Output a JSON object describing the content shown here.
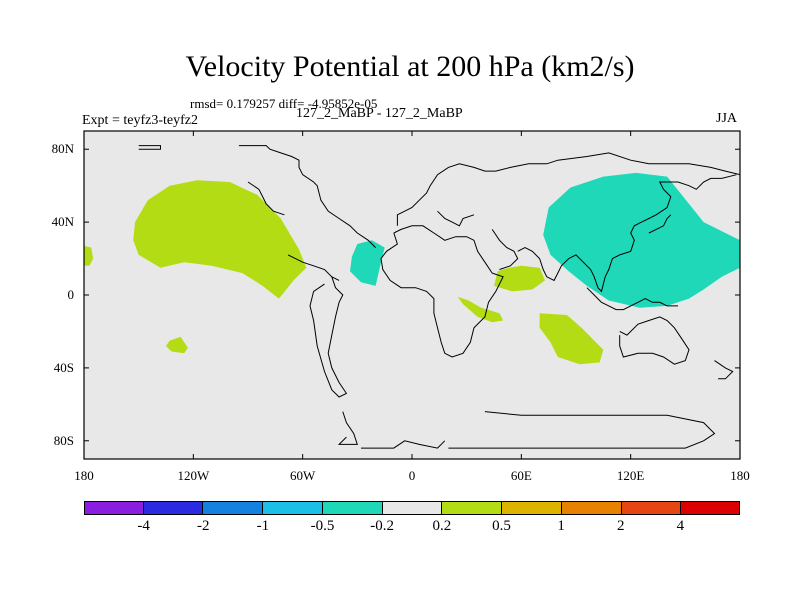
{
  "chart_data": {
    "type": "contour-map",
    "title": "Velocity Potential at 200 hPa (km2/s)",
    "stats_text": "rmsd= 0.179257 diff= -4.95852e-05",
    "left_label": "Expt = teyfz3-teyfz2",
    "center_label": "127_2_MaBP - 127_2_MaBP",
    "right_label": "JJA",
    "xlim": [
      -180,
      180
    ],
    "ylim": [
      -90,
      90
    ],
    "x_ticks": [
      {
        "value": -180,
        "label": "180"
      },
      {
        "value": -120,
        "label": "120W"
      },
      {
        "value": -60,
        "label": "60W"
      },
      {
        "value": 0,
        "label": "0"
      },
      {
        "value": 60,
        "label": "60E"
      },
      {
        "value": 120,
        "label": "120E"
      },
      {
        "value": 180,
        "label": "180"
      }
    ],
    "y_ticks": [
      {
        "value": 80,
        "label": "80N"
      },
      {
        "value": 40,
        "label": "40N"
      },
      {
        "value": 0,
        "label": "0"
      },
      {
        "value": -40,
        "label": "40S"
      },
      {
        "value": -80,
        "label": "80S"
      }
    ],
    "colorbar": {
      "colors": [
        "#8a1ee0",
        "#2a2ae0",
        "#1480e0",
        "#1cc0e6",
        "#1ed8b8",
        "#e8e8e8",
        "#b4dc14",
        "#dcb400",
        "#e68200",
        "#e64614",
        "#dc0000"
      ],
      "labels": [
        "-4",
        "-2",
        "-1",
        "-0.5",
        "-0.2",
        "0.2",
        "0.5",
        "1",
        "2",
        "4"
      ]
    },
    "background_color": "#e8e8e8",
    "regions": [
      {
        "name": "positive-anomaly-north-pacific",
        "level": "0.2 to 0.5",
        "color": "#b4dc14",
        "points": [
          [
            -152,
            40
          ],
          [
            -145,
            52
          ],
          [
            -133,
            60
          ],
          [
            -118,
            63
          ],
          [
            -100,
            62
          ],
          [
            -85,
            55
          ],
          [
            -72,
            42
          ],
          [
            -62,
            25
          ],
          [
            -58,
            15
          ],
          [
            -65,
            8
          ],
          [
            -73,
            -2
          ],
          [
            -82,
            5
          ],
          [
            -93,
            12
          ],
          [
            -110,
            16
          ],
          [
            -125,
            18
          ],
          [
            -138,
            15
          ],
          [
            -150,
            22
          ],
          [
            -153,
            30
          ]
        ]
      },
      {
        "name": "positive-anomaly-east-pacific-edge",
        "level": "0.2 to 0.5",
        "color": "#b4dc14",
        "points": [
          [
            -180,
            27
          ],
          [
            -176,
            26
          ],
          [
            -175,
            20
          ],
          [
            -177,
            16
          ],
          [
            -180,
            16
          ]
        ]
      },
      {
        "name": "positive-anomaly-south-pacific",
        "level": "0.2 to 0.5",
        "color": "#b4dc14",
        "points": [
          [
            -133,
            -25
          ],
          [
            -127,
            -23
          ],
          [
            -123,
            -29
          ],
          [
            -125,
            -32
          ],
          [
            -132,
            -31
          ],
          [
            -135,
            -28
          ]
        ]
      },
      {
        "name": "positive-anomaly-arabian-sea",
        "level": "0.2 to 0.5",
        "color": "#b4dc14",
        "points": [
          [
            47,
            13
          ],
          [
            53,
            15
          ],
          [
            60,
            16
          ],
          [
            70,
            15
          ],
          [
            73,
            8
          ],
          [
            66,
            3
          ],
          [
            55,
            2
          ],
          [
            45,
            5
          ]
        ]
      },
      {
        "name": "positive-anomaly-east-africa",
        "level": "0.2 to 0.5",
        "color": "#b4dc14",
        "points": [
          [
            25,
            -1
          ],
          [
            31,
            -3
          ],
          [
            38,
            -7
          ],
          [
            48,
            -10
          ],
          [
            50,
            -14
          ],
          [
            44,
            -15
          ],
          [
            36,
            -12
          ],
          [
            28,
            -5
          ]
        ]
      },
      {
        "name": "positive-anomaly-south-indian-ocean",
        "level": "0.2 to 0.5",
        "color": "#b4dc14",
        "points": [
          [
            70,
            -10
          ],
          [
            85,
            -11
          ],
          [
            93,
            -18
          ],
          [
            105,
            -30
          ],
          [
            103,
            -37
          ],
          [
            92,
            -38
          ],
          [
            80,
            -34
          ],
          [
            76,
            -26
          ],
          [
            70,
            -18
          ]
        ]
      },
      {
        "name": "negative-anomaly-asia",
        "level": "-0.5 to -0.2",
        "color": "#1ed8b8",
        "points": [
          [
            75,
            48
          ],
          [
            87,
            59
          ],
          [
            105,
            65
          ],
          [
            123,
            67
          ],
          [
            140,
            65
          ],
          [
            148,
            55
          ],
          [
            160,
            40
          ],
          [
            180,
            30
          ],
          [
            180,
            15
          ],
          [
            170,
            10
          ],
          [
            160,
            3
          ],
          [
            152,
            -2
          ],
          [
            140,
            -6
          ],
          [
            125,
            -7
          ],
          [
            108,
            -3
          ],
          [
            96,
            5
          ],
          [
            86,
            13
          ],
          [
            76,
            22
          ],
          [
            72,
            33
          ]
        ]
      },
      {
        "name": "negative-anomaly-europe",
        "level": "-0.5 to -0.2",
        "color": "#1ed8b8",
        "points": [
          [
            -30,
            28
          ],
          [
            -22,
            30
          ],
          [
            -15,
            26
          ],
          [
            -17,
            18
          ],
          [
            -20,
            5
          ],
          [
            -28,
            7
          ],
          [
            -34,
            13
          ],
          [
            -33,
            21
          ]
        ]
      }
    ],
    "coastlines": [
      [
        [
          -150,
          80
        ],
        [
          -138,
          80
        ],
        [
          -138,
          82
        ],
        [
          -150,
          82
        ]
      ],
      [
        [
          -95,
          82
        ],
        [
          -80,
          82
        ],
        [
          -78,
          80
        ],
        [
          -72,
          78
        ],
        [
          -66,
          76
        ],
        [
          -62,
          74
        ],
        [
          -62,
          70
        ],
        [
          -60,
          66
        ],
        [
          -54,
          62
        ],
        [
          -52,
          60
        ],
        [
          -50,
          52
        ],
        [
          -46,
          46
        ],
        [
          -40,
          42
        ],
        [
          -34,
          38
        ],
        [
          -30,
          34
        ],
        [
          -24,
          30
        ],
        [
          -20,
          26
        ]
      ],
      [
        [
          -90,
          62
        ],
        [
          -84,
          58
        ],
        [
          -82,
          54
        ],
        [
          -80,
          50
        ],
        [
          -76,
          46
        ],
        [
          -70,
          44
        ]
      ],
      [
        [
          -68,
          22
        ],
        [
          -64,
          20
        ],
        [
          -60,
          18
        ],
        [
          -54,
          16
        ],
        [
          -48,
          14
        ],
        [
          -44,
          10
        ],
        [
          -40,
          8
        ]
      ],
      [
        [
          -44,
          10
        ],
        [
          -42,
          4
        ],
        [
          -38,
          0
        ],
        [
          -40,
          -4
        ],
        [
          -42,
          -12
        ],
        [
          -44,
          -22
        ],
        [
          -46,
          -32
        ],
        [
          -44,
          -40
        ],
        [
          -40,
          -48
        ],
        [
          -36,
          -54
        ],
        [
          -40,
          -56
        ],
        [
          -44,
          -52
        ],
        [
          -48,
          -42
        ],
        [
          -52,
          -28
        ],
        [
          -54,
          -14
        ],
        [
          -56,
          -6
        ],
        [
          -54,
          2
        ],
        [
          -48,
          6
        ]
      ],
      [
        [
          -38,
          -64
        ],
        [
          -36,
          -70
        ],
        [
          -32,
          -76
        ],
        [
          -30,
          -82
        ],
        [
          -40,
          -82
        ],
        [
          -36,
          -78
        ]
      ],
      [
        [
          -28,
          -84
        ],
        [
          -10,
          -84
        ],
        [
          -4,
          -80
        ],
        [
          4,
          -82
        ],
        [
          14,
          -84
        ],
        [
          18,
          -80
        ]
      ],
      [
        [
          -10,
          34
        ],
        [
          -8,
          28
        ],
        [
          -14,
          24
        ],
        [
          -17,
          20
        ],
        [
          -16,
          14
        ],
        [
          -12,
          8
        ],
        [
          -6,
          4
        ],
        [
          2,
          4
        ],
        [
          8,
          2
        ],
        [
          12,
          -2
        ],
        [
          12,
          -10
        ],
        [
          14,
          -18
        ],
        [
          16,
          -26
        ],
        [
          18,
          -32
        ],
        [
          22,
          -34
        ],
        [
          28,
          -32
        ],
        [
          32,
          -26
        ],
        [
          34,
          -18
        ],
        [
          40,
          -12
        ],
        [
          42,
          -4
        ],
        [
          46,
          2
        ],
        [
          50,
          10
        ],
        [
          44,
          12
        ]
      ],
      [
        [
          44,
          12
        ],
        [
          40,
          18
        ],
        [
          36,
          24
        ],
        [
          34,
          30
        ],
        [
          30,
          32
        ],
        [
          24,
          32
        ],
        [
          18,
          30
        ],
        [
          12,
          34
        ],
        [
          6,
          38
        ],
        [
          0,
          38
        ],
        [
          -6,
          36
        ],
        [
          -10,
          34
        ]
      ],
      [
        [
          -8,
          38
        ],
        [
          -8,
          44
        ],
        [
          -4,
          46
        ],
        [
          0,
          48
        ],
        [
          4,
          52
        ],
        [
          8,
          56
        ],
        [
          10,
          60
        ],
        [
          14,
          66
        ],
        [
          20,
          70
        ],
        [
          26,
          72
        ],
        [
          34,
          70
        ],
        [
          40,
          68
        ],
        [
          46,
          68
        ],
        [
          54,
          70
        ],
        [
          64,
          72
        ],
        [
          74,
          72
        ],
        [
          80,
          74
        ],
        [
          96,
          76
        ],
        [
          108,
          78
        ],
        [
          120,
          74
        ],
        [
          130,
          72
        ],
        [
          140,
          72
        ],
        [
          152,
          72
        ],
        [
          164,
          70
        ],
        [
          172,
          68
        ],
        [
          180,
          66
        ]
      ],
      [
        [
          14,
          46
        ],
        [
          18,
          42
        ],
        [
          22,
          40
        ],
        [
          26,
          38
        ],
        [
          28,
          42
        ],
        [
          34,
          44
        ]
      ],
      [
        [
          44,
          36
        ],
        [
          48,
          30
        ],
        [
          52,
          26
        ],
        [
          56,
          24
        ],
        [
          58,
          20
        ],
        [
          54,
          16
        ],
        [
          48,
          14
        ]
      ],
      [
        [
          58,
          24
        ],
        [
          62,
          26
        ],
        [
          66,
          24
        ],
        [
          70,
          20
        ],
        [
          72,
          14
        ],
        [
          74,
          10
        ],
        [
          78,
          8
        ],
        [
          80,
          12
        ],
        [
          82,
          16
        ],
        [
          86,
          20
        ],
        [
          90,
          22
        ],
        [
          94,
          18
        ],
        [
          98,
          14
        ],
        [
          100,
          10
        ],
        [
          102,
          4
        ],
        [
          104,
          2
        ],
        [
          106,
          10
        ],
        [
          108,
          14
        ],
        [
          110,
          20
        ],
        [
          114,
          22
        ],
        [
          120,
          24
        ],
        [
          122,
          30
        ],
        [
          120,
          34
        ],
        [
          122,
          38
        ],
        [
          126,
          40
        ],
        [
          130,
          42
        ],
        [
          134,
          44
        ],
        [
          140,
          48
        ],
        [
          142,
          54
        ],
        [
          138,
          58
        ],
        [
          136,
          62
        ],
        [
          146,
          62
        ],
        [
          152,
          60
        ],
        [
          156,
          58
        ],
        [
          160,
          62
        ],
        [
          164,
          64
        ],
        [
          170,
          64
        ],
        [
          178,
          66
        ]
      ],
      [
        [
          130,
          34
        ],
        [
          134,
          36
        ],
        [
          138,
          38
        ],
        [
          140,
          42
        ],
        [
          142,
          44
        ]
      ],
      [
        [
          114,
          -20
        ],
        [
          118,
          -22
        ],
        [
          124,
          -16
        ],
        [
          130,
          -14
        ],
        [
          136,
          -12
        ],
        [
          140,
          -14
        ],
        [
          144,
          -18
        ],
        [
          148,
          -24
        ],
        [
          152,
          -30
        ],
        [
          150,
          -36
        ],
        [
          144,
          -38
        ],
        [
          138,
          -34
        ],
        [
          132,
          -32
        ],
        [
          124,
          -32
        ],
        [
          116,
          -34
        ],
        [
          114,
          -28
        ],
        [
          114,
          -22
        ]
      ],
      [
        [
          166,
          -36
        ],
        [
          172,
          -40
        ],
        [
          176,
          -42
        ],
        [
          172,
          -46
        ],
        [
          168,
          -46
        ]
      ],
      [
        [
          96,
          4
        ],
        [
          100,
          0
        ],
        [
          104,
          -4
        ],
        [
          108,
          -6
        ],
        [
          112,
          -8
        ],
        [
          116,
          -8
        ],
        [
          120,
          -6
        ],
        [
          124,
          -4
        ],
        [
          128,
          -2
        ],
        [
          132,
          -4
        ],
        [
          136,
          -4
        ],
        [
          140,
          -6
        ],
        [
          146,
          -6
        ]
      ],
      [
        [
          40,
          -64
        ],
        [
          60,
          -66
        ],
        [
          80,
          -66
        ],
        [
          100,
          -66
        ],
        [
          120,
          -66
        ],
        [
          140,
          -66
        ],
        [
          160,
          -70
        ],
        [
          166,
          -76
        ],
        [
          160,
          -80
        ],
        [
          150,
          -84
        ],
        [
          120,
          -84
        ],
        [
          80,
          -84
        ],
        [
          50,
          -84
        ],
        [
          20,
          -84
        ]
      ]
    ]
  }
}
